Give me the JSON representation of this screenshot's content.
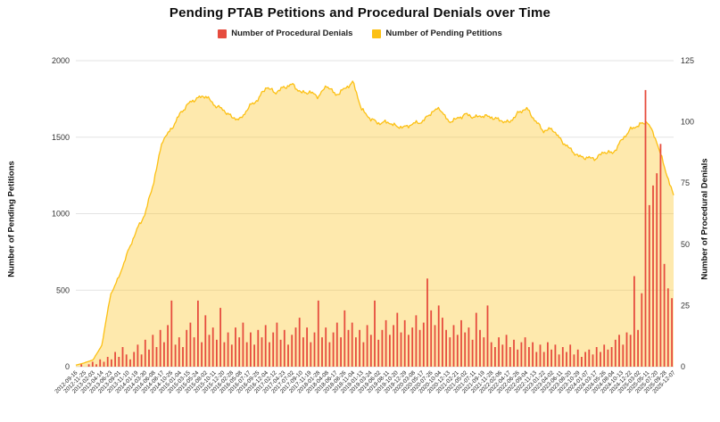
{
  "title": "Pending PTAB Petitions and Procedural Denials over Time",
  "legend": [
    {
      "label": "Number of Procedural Denials",
      "color": "#e64c3e"
    },
    {
      "label": "Number of Pending Petitions",
      "color": "#fcc013"
    }
  ],
  "chart_data": {
    "type": "mixed",
    "title": "Pending PTAB Petitions and Procedural Denials over Time",
    "xlabel": "",
    "grid": true,
    "legend_position": "top",
    "left_axis": {
      "label": "Number of Pending Petitions",
      "ticks": [
        0,
        500,
        1000,
        1500,
        2000
      ],
      "range": [
        0,
        2000
      ]
    },
    "right_axis": {
      "label": "Number of Procedural Denials",
      "ticks": [
        0,
        25,
        50,
        75,
        100,
        125
      ],
      "range": [
        0,
        125
      ]
    },
    "x_tick_labels": [
      "2012-09-16",
      "2012-11-25",
      "2013-02-03",
      "2013-04-14",
      "2013-06-23",
      "2013-09-01",
      "2013-11-10",
      "2014-01-19",
      "2014-03-30",
      "2014-06-08",
      "2014-08-17",
      "2014-10-26",
      "2015-01-04",
      "2015-03-15",
      "2015-05-24",
      "2015-08-02",
      "2015-10-11",
      "2015-12-20",
      "2016-02-28",
      "2016-05-08",
      "2016-07-17",
      "2016-09-25",
      "2016-12-04",
      "2017-02-12",
      "2017-04-23",
      "2017-07-02",
      "2017-09-10",
      "2017-11-19",
      "2018-01-28",
      "2018-04-08",
      "2018-06-17",
      "2018-08-26",
      "2018-11-04",
      "2019-01-13",
      "2019-03-24",
      "2019-06-02",
      "2019-08-11",
      "2019-10-20",
      "2019-12-29",
      "2020-03-08",
      "2020-05-17",
      "2020-07-26",
      "2020-10-04",
      "2020-12-13",
      "2021-02-21",
      "2021-05-02",
      "2021-07-11",
      "2021-09-19",
      "2021-11-28",
      "2022-02-06",
      "2022-04-17",
      "2022-06-26",
      "2022-09-04",
      "2022-11-13",
      "2023-01-22",
      "2023-04-02",
      "2023-06-11",
      "2023-08-20",
      "2023-10-29",
      "2024-01-07",
      "2024-03-17",
      "2024-05-26",
      "2024-08-04",
      "2024-10-13",
      "2024-12-22",
      "2025-03-02",
      "2025-05-11",
      "2025-07-20",
      "2025-09-28",
      "2025-12-07"
    ],
    "series": [
      {
        "name": "Number of Pending Petitions",
        "type": "area",
        "axis": "left",
        "line_color": "#fcc013",
        "fill_color": "rgba(252,192,19,0.35)",
        "x": [
          "2012-09-16",
          "2012-11-25",
          "2013-02-03",
          "2013-04-14",
          "2013-06-23",
          "2013-09-01",
          "2013-11-10",
          "2014-01-19",
          "2014-03-30",
          "2014-06-08",
          "2014-08-17",
          "2014-10-26",
          "2015-01-04",
          "2015-03-15",
          "2015-05-24",
          "2015-08-02",
          "2015-10-11",
          "2015-12-20",
          "2016-02-28",
          "2016-05-08",
          "2016-07-17",
          "2016-09-25",
          "2016-12-04",
          "2017-02-12",
          "2017-04-23",
          "2017-07-02",
          "2017-09-10",
          "2017-11-19",
          "2018-01-28",
          "2018-04-08",
          "2018-06-17",
          "2018-08-26",
          "2018-11-04",
          "2019-01-13",
          "2019-03-24",
          "2019-06-02",
          "2019-08-11",
          "2019-10-20",
          "2019-12-29",
          "2020-03-08",
          "2020-05-17",
          "2020-07-26",
          "2020-10-04",
          "2020-12-13",
          "2021-02-21",
          "2021-05-02",
          "2021-07-11",
          "2021-09-19",
          "2021-11-28",
          "2022-02-06",
          "2022-04-17",
          "2022-06-26",
          "2022-09-04",
          "2022-11-13",
          "2023-01-22",
          "2023-04-02",
          "2023-06-11",
          "2023-08-20",
          "2023-10-29",
          "2024-01-07",
          "2024-03-17",
          "2024-05-26",
          "2024-08-04",
          "2024-10-13",
          "2024-12-22",
          "2025-03-02",
          "2025-05-11",
          "2025-07-20",
          "2025-09-28",
          "2025-12-07"
        ],
        "values": [
          10,
          25,
          45,
          140,
          470,
          590,
          750,
          890,
          1000,
          1210,
          1480,
          1550,
          1650,
          1720,
          1755,
          1770,
          1710,
          1680,
          1630,
          1615,
          1700,
          1745,
          1830,
          1790,
          1825,
          1845,
          1790,
          1795,
          1765,
          1840,
          1775,
          1815,
          1860,
          1680,
          1620,
          1590,
          1600,
          1570,
          1565,
          1590,
          1600,
          1660,
          1690,
          1600,
          1620,
          1650,
          1630,
          1640,
          1630,
          1610,
          1595,
          1655,
          1690,
          1610,
          1540,
          1555,
          1480,
          1425,
          1375,
          1365,
          1360,
          1405,
          1395,
          1480,
          1550,
          1580,
          1600,
          1480,
          1295,
          1115
        ]
      },
      {
        "name": "Number of Procedural Denials",
        "type": "bar",
        "axis": "right",
        "color": "#e64c3e",
        "x": [
          "2012-10",
          "2012-11",
          "2012-12",
          "2013-01",
          "2013-02",
          "2013-03",
          "2013-04",
          "2013-05",
          "2013-06",
          "2013-07",
          "2013-08",
          "2013-09",
          "2013-10",
          "2013-11",
          "2013-12",
          "2014-01",
          "2014-02",
          "2014-03",
          "2014-04",
          "2014-05",
          "2014-06",
          "2014-07",
          "2014-08",
          "2014-09",
          "2014-10",
          "2014-11",
          "2014-12",
          "2015-01",
          "2015-02",
          "2015-03",
          "2015-04",
          "2015-05",
          "2015-06",
          "2015-07",
          "2015-08",
          "2015-09",
          "2015-10",
          "2015-11",
          "2015-12",
          "2016-01",
          "2016-02",
          "2016-03",
          "2016-04",
          "2016-05",
          "2016-06",
          "2016-07",
          "2016-08",
          "2016-09",
          "2016-10",
          "2016-11",
          "2016-12",
          "2017-01",
          "2017-02",
          "2017-03",
          "2017-04",
          "2017-05",
          "2017-06",
          "2017-07",
          "2017-08",
          "2017-09",
          "2017-10",
          "2017-11",
          "2017-12",
          "2018-01",
          "2018-02",
          "2018-03",
          "2018-04",
          "2018-05",
          "2018-06",
          "2018-07",
          "2018-08",
          "2018-09",
          "2018-10",
          "2018-11",
          "2018-12",
          "2019-01",
          "2019-02",
          "2019-03",
          "2019-04",
          "2019-05",
          "2019-06",
          "2019-07",
          "2019-08",
          "2019-09",
          "2019-10",
          "2019-11",
          "2019-12",
          "2020-01",
          "2020-02",
          "2020-03",
          "2020-04",
          "2020-05",
          "2020-06",
          "2020-07",
          "2020-08",
          "2020-09",
          "2020-10",
          "2020-11",
          "2020-12",
          "2021-01",
          "2021-02",
          "2021-03",
          "2021-04",
          "2021-05",
          "2021-06",
          "2021-07",
          "2021-08",
          "2021-09",
          "2021-10",
          "2021-11",
          "2021-12",
          "2022-01",
          "2022-02",
          "2022-03",
          "2022-04",
          "2022-05",
          "2022-06",
          "2022-07",
          "2022-08",
          "2022-09",
          "2022-10",
          "2022-11",
          "2022-12",
          "2023-01",
          "2023-02",
          "2023-03",
          "2023-04",
          "2023-05",
          "2023-06",
          "2023-07",
          "2023-08",
          "2023-09",
          "2023-10",
          "2023-11",
          "2023-12",
          "2024-01",
          "2024-02",
          "2024-03",
          "2024-04",
          "2024-05",
          "2024-06",
          "2024-07",
          "2024-08",
          "2024-09",
          "2024-10",
          "2024-11",
          "2024-12",
          "2025-01",
          "2025-02",
          "2025-03",
          "2025-04",
          "2025-05",
          "2025-06",
          "2025-07",
          "2025-08",
          "2025-09",
          "2025-10",
          "2025-11",
          "2025-12"
        ],
        "values": [
          0,
          1,
          0,
          1,
          2,
          1,
          3,
          2,
          4,
          3,
          6,
          4,
          8,
          5,
          3,
          6,
          9,
          5,
          11,
          7,
          13,
          8,
          15,
          10,
          17,
          27,
          9,
          12,
          8,
          15,
          18,
          12,
          27,
          10,
          21,
          13,
          16,
          11,
          24,
          10,
          14,
          9,
          16,
          12,
          18,
          10,
          14,
          9,
          15,
          12,
          17,
          10,
          14,
          18,
          11,
          15,
          9,
          13,
          16,
          20,
          12,
          16,
          10,
          14,
          27,
          12,
          16,
          10,
          14,
          18,
          12,
          23,
          15,
          18,
          12,
          15,
          10,
          17,
          13,
          27,
          11,
          15,
          19,
          13,
          17,
          22,
          14,
          19,
          13,
          16,
          21,
          15,
          18,
          36,
          23,
          17,
          25,
          20,
          15,
          12,
          17,
          13,
          19,
          14,
          16,
          11,
          22,
          15,
          12,
          25,
          10,
          8,
          12,
          9,
          13,
          8,
          11,
          7,
          10,
          12,
          8,
          10,
          6,
          9,
          6,
          10,
          7,
          9,
          5,
          8,
          6,
          9,
          5,
          7,
          4,
          6,
          7,
          5,
          8,
          6,
          9,
          7,
          8,
          11,
          13,
          9,
          14,
          13,
          37,
          15,
          30,
          113,
          66,
          74,
          79,
          91,
          42,
          32,
          28
        ]
      }
    ]
  }
}
